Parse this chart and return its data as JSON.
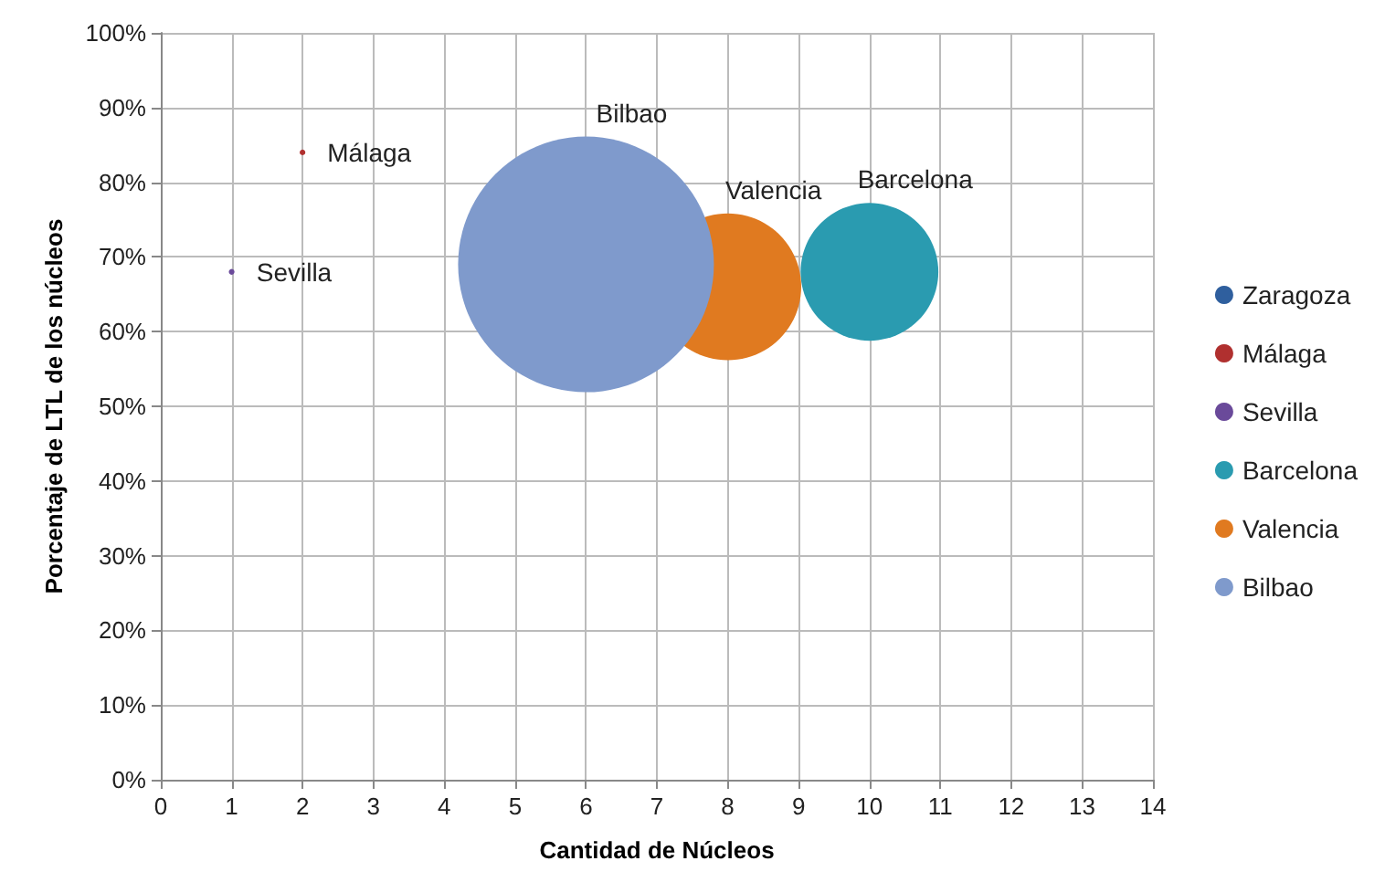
{
  "chart_data": {
    "type": "bubble",
    "xlabel": "Cantidad de Núcleos",
    "ylabel": "Porcentaje de LTL de los núcleos",
    "xlim": [
      0,
      14
    ],
    "xticks": [
      0,
      1,
      2,
      3,
      4,
      5,
      6,
      7,
      8,
      9,
      10,
      11,
      12,
      13,
      14
    ],
    "ylim": [
      0,
      100
    ],
    "yticks": [
      {
        "value": 0,
        "label": "0%"
      },
      {
        "value": 10,
        "label": "10%"
      },
      {
        "value": 20,
        "label": "20%"
      },
      {
        "value": 30,
        "label": "30%"
      },
      {
        "value": 40,
        "label": "40%"
      },
      {
        "value": 50,
        "label": "50%"
      },
      {
        "value": 60,
        "label": "60%"
      },
      {
        "value": 70,
        "label": "70%"
      },
      {
        "value": 80,
        "label": "80%"
      },
      {
        "value": 90,
        "label": "90%"
      },
      {
        "value": 100,
        "label": "100%"
      }
    ],
    "grid": true,
    "legend": "right",
    "series": [
      {
        "name": "Zaragoza",
        "color": "#2f5f9e",
        "x": [
          null
        ],
        "values": [
          null
        ],
        "sizes": [
          null
        ]
      },
      {
        "name": "Málaga",
        "color": "#b0302f",
        "x": [
          2
        ],
        "values": [
          84
        ],
        "sizes": [
          0.0005
        ]
      },
      {
        "name": "Sevilla",
        "color": "#6a4a9a",
        "x": [
          1
        ],
        "values": [
          68
        ],
        "sizes": [
          0.0005
        ]
      },
      {
        "name": "Barcelona",
        "color": "#2a9bb0",
        "x": [
          10
        ],
        "values": [
          68
        ],
        "sizes": [
          0.29
        ]
      },
      {
        "name": "Valencia",
        "color": "#e07a20",
        "x": [
          8
        ],
        "values": [
          66
        ],
        "sizes": [
          0.33
        ]
      },
      {
        "name": "Bilbao",
        "color": "#7f9acc",
        "x": [
          6
        ],
        "values": [
          69
        ],
        "sizes": [
          1
        ]
      }
    ]
  }
}
